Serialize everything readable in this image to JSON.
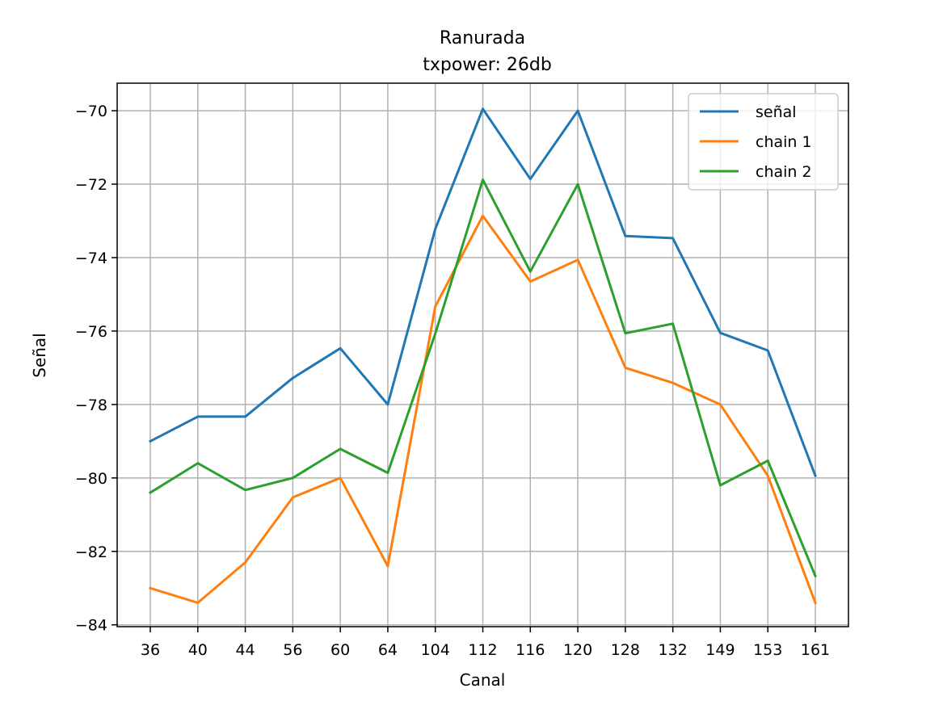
{
  "chart_data": {
    "type": "line",
    "title": "Ranurada",
    "subtitle": "txpower: 26db",
    "xlabel": "Canal",
    "ylabel": "Señal",
    "categories": [
      "36",
      "40",
      "44",
      "56",
      "60",
      "64",
      "104",
      "112",
      "116",
      "120",
      "128",
      "132",
      "149",
      "153",
      "161"
    ],
    "ylim": [
      -84.05,
      -69.25
    ],
    "yticks": [
      -70,
      -72,
      -74,
      -76,
      -78,
      -80,
      -82,
      -84
    ],
    "ytick_labels": [
      "−70",
      "−72",
      "−74",
      "−76",
      "−78",
      "−80",
      "−82",
      "−84"
    ],
    "grid": true,
    "legend_position": "top-right",
    "series": [
      {
        "name": "señal",
        "color": "#1f77b4",
        "values": [
          -79.0,
          -78.33,
          -78.33,
          -77.28,
          -76.47,
          -78.0,
          -73.22,
          -69.95,
          -71.86,
          -70.0,
          -73.41,
          -73.47,
          -76.05,
          -76.53,
          -79.94
        ]
      },
      {
        "name": "chain 1",
        "color": "#ff7f0e",
        "values": [
          -83.0,
          -83.4,
          -82.3,
          -80.53,
          -80.0,
          -82.4,
          -75.33,
          -72.86,
          -74.65,
          -74.06,
          -77.0,
          -77.41,
          -78.0,
          -79.94,
          -83.4
        ]
      },
      {
        "name": "chain 2",
        "color": "#2ca02c",
        "values": [
          -80.4,
          -79.6,
          -80.33,
          -80.0,
          -79.21,
          -79.86,
          -76.07,
          -71.88,
          -74.38,
          -72.0,
          -76.06,
          -75.8,
          -80.2,
          -79.53,
          -82.67
        ]
      }
    ]
  }
}
